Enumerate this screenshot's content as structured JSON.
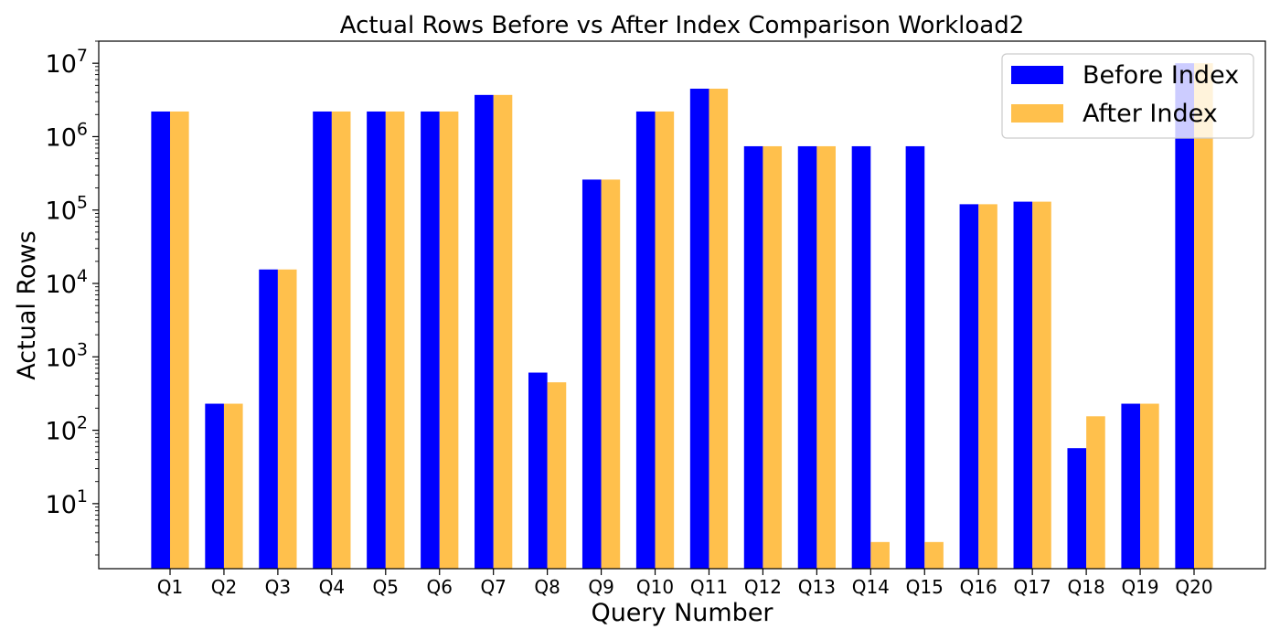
{
  "chart_data": {
    "type": "bar",
    "title": "Actual Rows Before vs After Index Comparison Workload2",
    "xlabel": "Query Number",
    "ylabel": "Actual Rows",
    "yscale": "log",
    "ylim": [
      1.3,
      20000000
    ],
    "grid": false,
    "legend_position": "top-right",
    "categories": [
      "Q1",
      "Q2",
      "Q3",
      "Q4",
      "Q5",
      "Q6",
      "Q7",
      "Q8",
      "Q9",
      "Q10",
      "Q11",
      "Q12",
      "Q13",
      "Q14",
      "Q15",
      "Q16",
      "Q17",
      "Q18",
      "Q19",
      "Q20"
    ],
    "yticks": [
      {
        "value": 10,
        "base": "10",
        "exp": "1"
      },
      {
        "value": 100,
        "base": "10",
        "exp": "2"
      },
      {
        "value": 1000,
        "base": "10",
        "exp": "3"
      },
      {
        "value": 10000,
        "base": "10",
        "exp": "4"
      },
      {
        "value": 100000,
        "base": "10",
        "exp": "5"
      },
      {
        "value": 1000000,
        "base": "10",
        "exp": "6"
      },
      {
        "value": 10000000,
        "base": "10",
        "exp": "7"
      }
    ],
    "series": [
      {
        "name": "Before Index",
        "color": "#0000ff",
        "opacity": 1,
        "values": [
          2200000,
          230,
          15500,
          2200000,
          2200000,
          2200000,
          3700000,
          610,
          260000,
          2200000,
          4500000,
          740000,
          740000,
          740000,
          740000,
          120000,
          130000,
          57,
          230,
          10000000
        ]
      },
      {
        "name": "After Index",
        "color": "#ffa500",
        "opacity": 0.7,
        "values": [
          2200000,
          230,
          15500,
          2200000,
          2200000,
          2200000,
          3700000,
          450,
          260000,
          2200000,
          4500000,
          740000,
          740000,
          3,
          3,
          120000,
          130000,
          155,
          230,
          10000000
        ]
      }
    ]
  }
}
